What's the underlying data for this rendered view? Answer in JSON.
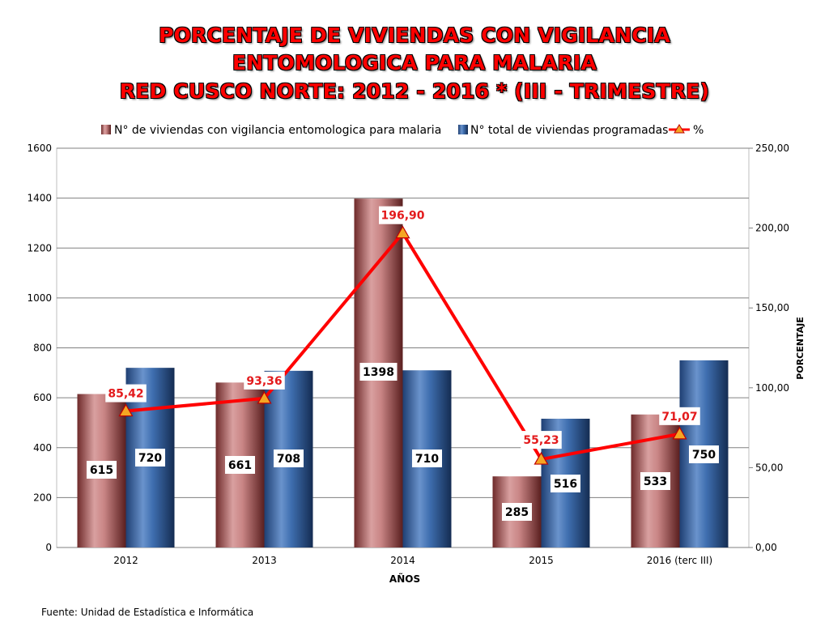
{
  "title": {
    "line1": "PORCENTAJE DE VIVIENDAS CON VIGILANCIA",
    "line2": "ENTOMOLOGICA PARA  MALARIA",
    "line3": "RED CUSCO NORTE: 2012 - 2016 * (III - TRIMESTRE)"
  },
  "source": "Fuente: Unidad de Estadística e Informática",
  "colors": {
    "title": "#ff0000",
    "series_vigilancia": "#a85a5a",
    "series_programadas": "#2f5f9e",
    "series_percent": "#ff0000",
    "percent_marker": "#f5a623",
    "percent_label": "#e31a1c"
  },
  "chart_data": {
    "type": "bar",
    "categories": [
      "2012",
      "2013",
      "2014",
      "2015",
      "2016 (terc III)"
    ],
    "xlabel": "AÑOS",
    "ylabel": "",
    "y2label": "PORCENTAJE",
    "ylim": [
      0,
      1600
    ],
    "yticks": [
      "0",
      "200",
      "400",
      "600",
      "800",
      "1000",
      "1200",
      "1400",
      "1600"
    ],
    "y2lim": [
      0,
      250
    ],
    "y2ticks": [
      "0,00",
      "50,00",
      "100,00",
      "150,00",
      "200,00",
      "250,00"
    ],
    "grid": true,
    "legend": "top",
    "series": [
      {
        "name": "N° de viviendas con vigilancia entomologica para malaria",
        "kind": "bar",
        "axis": "left",
        "values": [
          615,
          661,
          1398,
          285,
          533
        ],
        "labels": [
          "615",
          "661",
          "1398",
          "285",
          "533"
        ]
      },
      {
        "name": "N° total de viviendas programadas",
        "kind": "bar",
        "axis": "left",
        "values": [
          720,
          708,
          710,
          516,
          750
        ],
        "labels": [
          "720",
          "708",
          "710",
          "516",
          "750"
        ]
      },
      {
        "name": "%",
        "kind": "line",
        "axis": "right",
        "values": [
          85.42,
          93.36,
          196.9,
          55.23,
          71.07
        ],
        "labels": [
          "85,42",
          "93,36",
          "196,90",
          "55,23",
          "71,07"
        ]
      }
    ]
  }
}
